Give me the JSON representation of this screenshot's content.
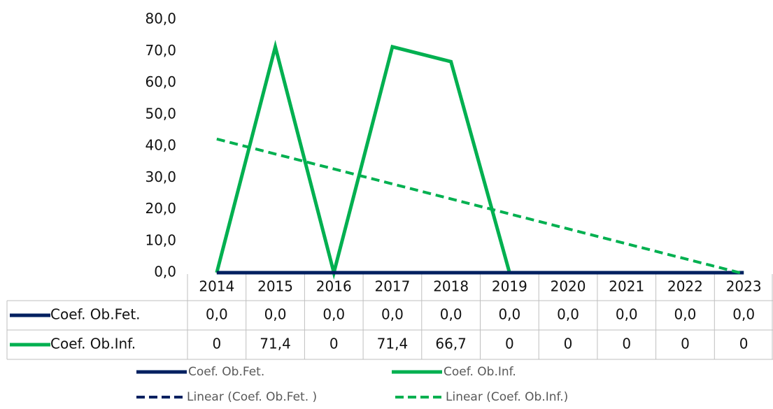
{
  "chart_data": {
    "type": "line",
    "categories": [
      "2014",
      "2015",
      "2016",
      "2017",
      "2018",
      "2019",
      "2020",
      "2021",
      "2022",
      "2023"
    ],
    "series": [
      {
        "name": "Coef. Ob.Fet.",
        "color": "#002060",
        "values": [
          0,
          0,
          0,
          0,
          0,
          0,
          0,
          0,
          0,
          0
        ],
        "value_labels": [
          "0,0",
          "0,0",
          "0,0",
          "0,0",
          "0,0",
          "0,0",
          "0,0",
          "0,0",
          "0,0",
          "0,0"
        ]
      },
      {
        "name": "Coef. Ob.Inf.",
        "color": "#00b050",
        "values": [
          0,
          71.4,
          0,
          71.4,
          66.7,
          0,
          0,
          0,
          0,
          0
        ],
        "value_labels": [
          "0",
          "71,4",
          "0",
          "71,4",
          "66,7",
          "0",
          "0",
          "0",
          "0",
          "0"
        ]
      }
    ],
    "trendlines": [
      {
        "name": "Linear (Coef. Ob.Fet. )",
        "series": 0,
        "kind": "linear"
      },
      {
        "name": "Linear (Coef. Ob.Inf.)",
        "series": 1,
        "kind": "linear"
      }
    ],
    "ylim": [
      0,
      80
    ],
    "yticks": [
      {
        "value": 0,
        "label": "0,0"
      },
      {
        "value": 10,
        "label": "10,0"
      },
      {
        "value": 20,
        "label": "20,0"
      },
      {
        "value": 30,
        "label": "30,0"
      },
      {
        "value": 40,
        "label": "40,0"
      },
      {
        "value": 50,
        "label": "50,0"
      },
      {
        "value": 60,
        "label": "60,0"
      },
      {
        "value": 70,
        "label": "70,0"
      },
      {
        "value": 80,
        "label": "80,0"
      }
    ],
    "data_table": true
  }
}
